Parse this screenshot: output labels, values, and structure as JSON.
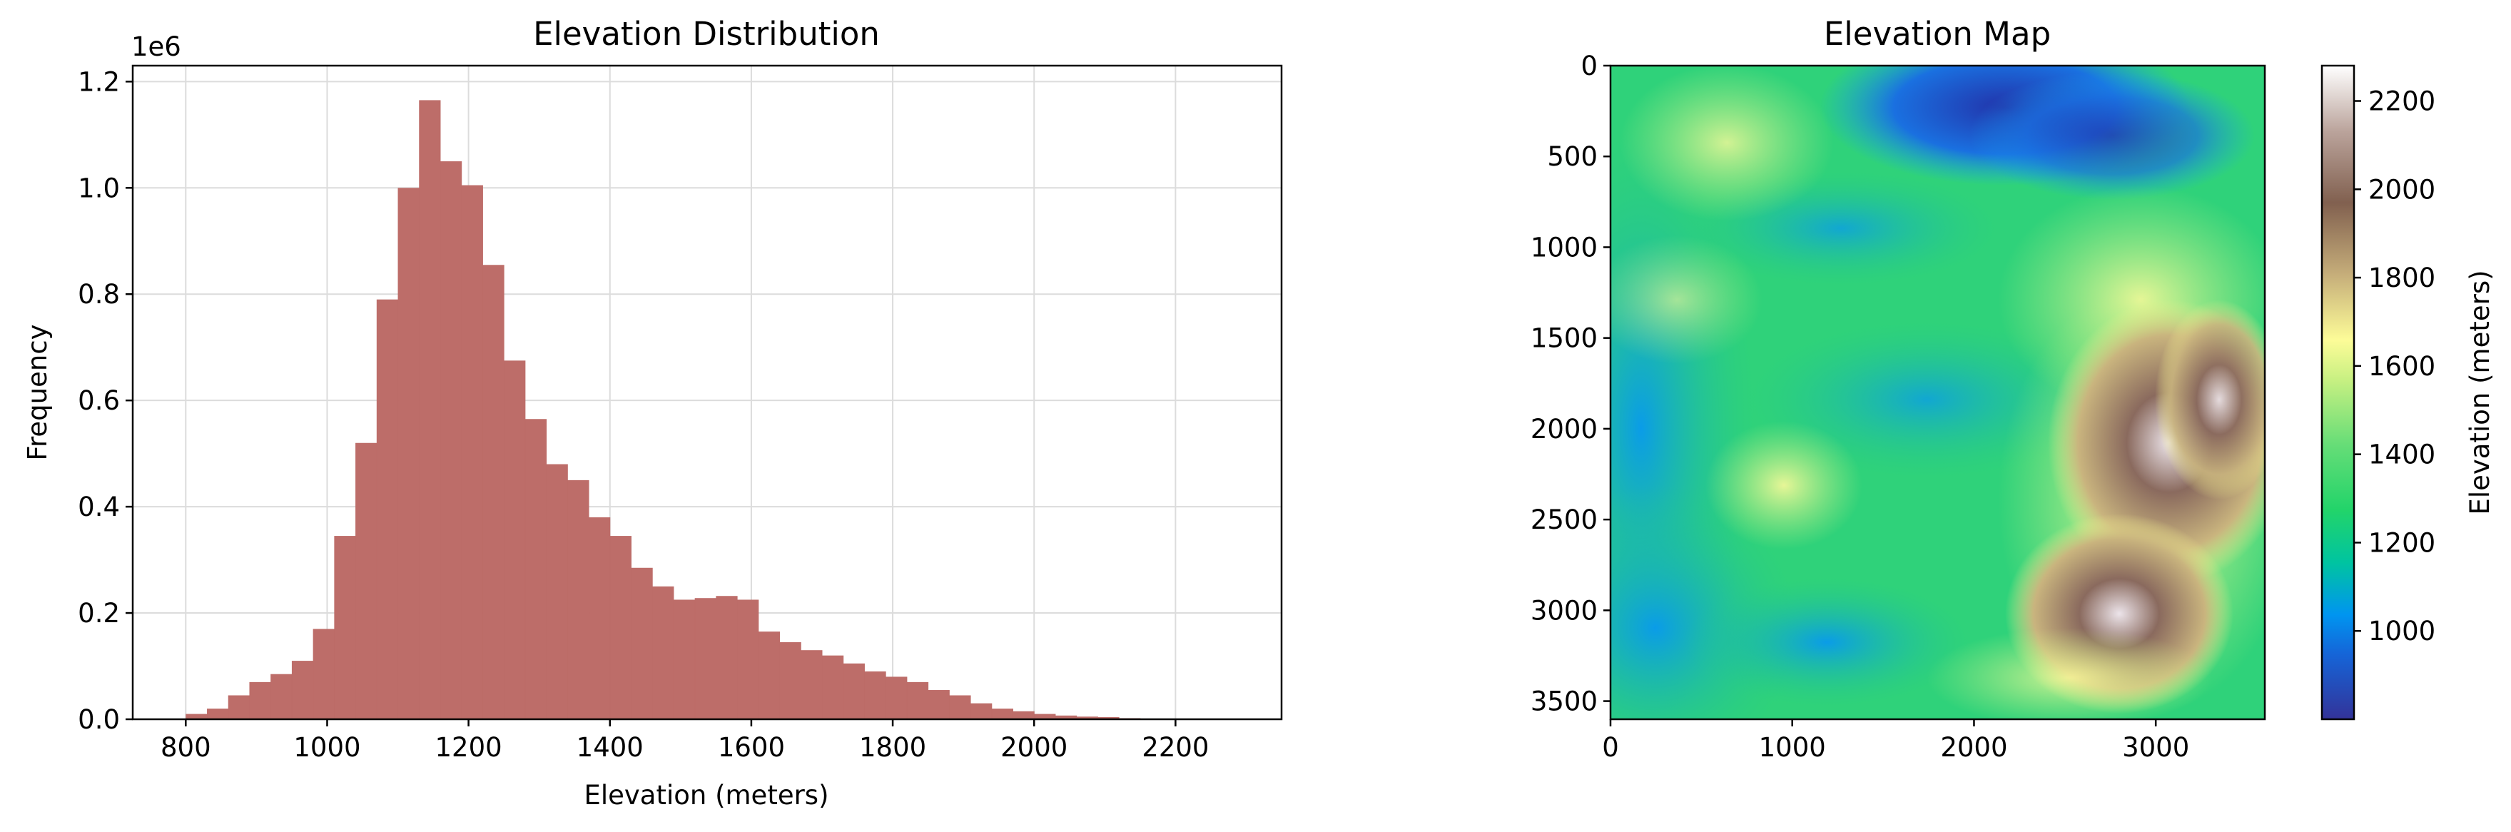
{
  "chart_data": [
    {
      "type": "bar",
      "title": "Elevation Distribution",
      "xlabel": "Elevation (meters)",
      "ylabel": "Frequency",
      "y_offset_label": "1e6",
      "xlim": [
        725,
        2350
      ],
      "ylim": [
        0,
        1.23
      ],
      "xticks": [
        "800",
        "1000",
        "1200",
        "1400",
        "1600",
        "1800",
        "2000",
        "2200"
      ],
      "yticks": [
        "0.0",
        "0.2",
        "0.4",
        "0.6",
        "0.8",
        "1.0",
        "1.2"
      ],
      "grid": true,
      "color": "#bc6a66",
      "bin_start": 800,
      "bin_width": 30,
      "values": [
        0.01,
        0.02,
        0.045,
        0.07,
        0.085,
        0.11,
        0.17,
        0.345,
        0.52,
        0.79,
        1.0,
        1.165,
        1.05,
        1.005,
        0.855,
        0.675,
        0.565,
        0.48,
        0.45,
        0.38,
        0.345,
        0.285,
        0.25,
        0.225,
        0.228,
        0.232,
        0.225,
        0.165,
        0.145,
        0.13,
        0.12,
        0.105,
        0.09,
        0.08,
        0.07,
        0.055,
        0.045,
        0.03,
        0.02,
        0.015,
        0.01,
        0.007,
        0.005,
        0.004,
        0.002,
        0.001
      ]
    },
    {
      "type": "heatmap",
      "title": "Elevation Map",
      "xticks": [
        "0",
        "1000",
        "2000",
        "3000"
      ],
      "yticks": [
        "0",
        "500",
        "1000",
        "1500",
        "2000",
        "2500",
        "3000",
        "3500"
      ],
      "xlim": [
        0,
        3600
      ],
      "ylim": [
        3600,
        0
      ],
      "colormap": "terrain",
      "colorbar_label": "Elevation (meters)",
      "colorbar_ticks": [
        "1000",
        "1200",
        "1400",
        "1600",
        "1800",
        "2000",
        "2200"
      ],
      "colorbar_range": [
        800,
        2280
      ]
    }
  ]
}
